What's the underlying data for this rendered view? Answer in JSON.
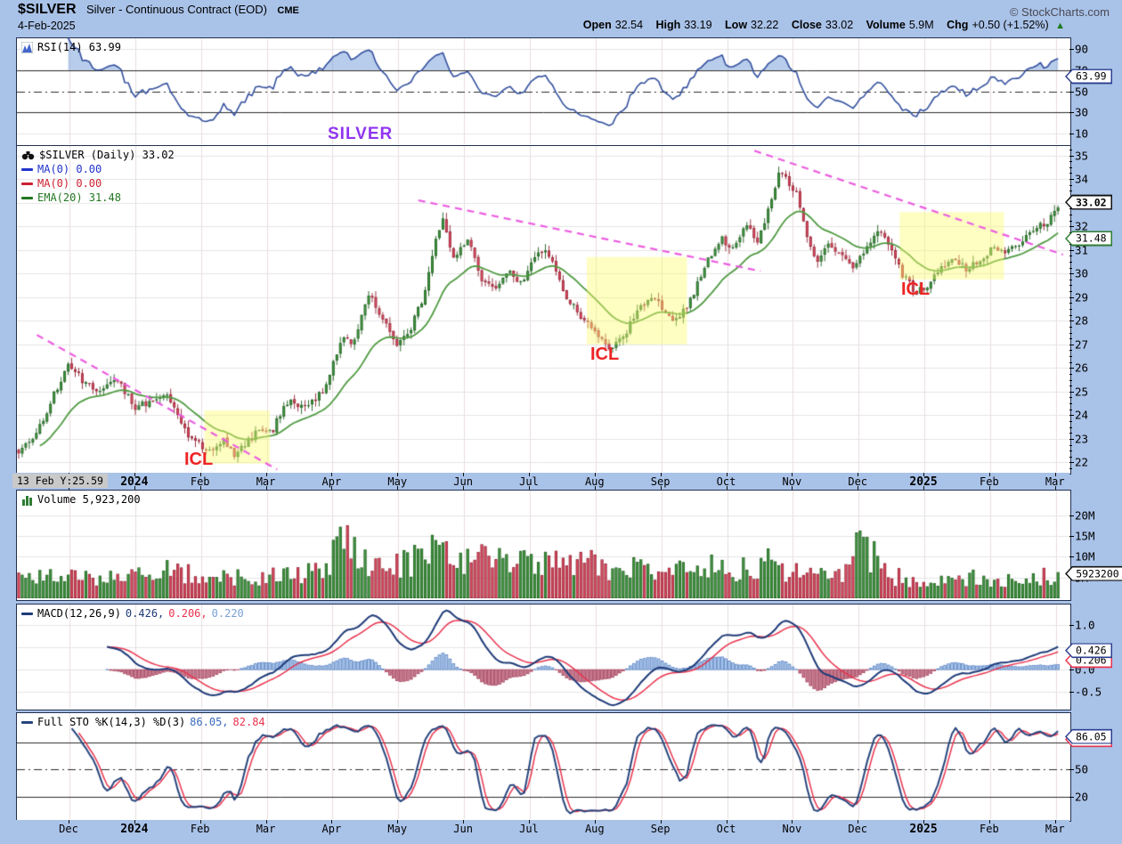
{
  "header": {
    "symbol": "$SILVER",
    "name": "Silver - Continuous Contract (EOD)",
    "exchange": "CME",
    "date": "4-Feb-2025",
    "credit": "© StockCharts.com",
    "quote": {
      "open_label": "Open",
      "open": "32.54",
      "high_label": "High",
      "high": "33.19",
      "low_label": "Low",
      "low": "32.22",
      "close_label": "Close",
      "close": "33.02",
      "volume_label": "Volume",
      "volume": "5.9M",
      "chg_label": "Chg",
      "chg": "+0.50 (+1.52%)",
      "arrow_up": "▲"
    }
  },
  "colors": {
    "page_bg": "#a9c2e8",
    "panel_border": "#22304f",
    "grid_h": "#e4e4e4",
    "grid_v": "#e8dcdc",
    "black_line": "#2a2a2a",
    "candle_up_fill": "#3f8f3f",
    "candle_up_stroke": "#1d5c1d",
    "candle_dn_fill": "#d0475c",
    "candle_dn_stroke": "#8e1f30",
    "ema_line": "#4f9a41",
    "rsi_line": "#33509e",
    "rsi_fill": "rgba(125,162,218,0.55)",
    "trendline": "#ec5ce0",
    "highlight_box": "rgba(252,252,110,0.42)",
    "icl_text": "#ee2424",
    "silver_text": "#8f35f0",
    "macd_line": "#1e3a78",
    "signal_line": "#e8334e",
    "hist_up_fill": "#a9c6ea",
    "hist_up_stroke": "#5b84c4",
    "hist_dn_fill": "#c77c90",
    "hist_dn_stroke": "#a4405c",
    "sto_k": "#27447c",
    "sto_d": "#e8334e",
    "badge_navy": "#2b3f8f",
    "badge_black": "#111111",
    "badge_green": "#2e7d32",
    "badge_red": "#e8334e"
  },
  "chart_data": {
    "type": "multi-panel-financial",
    "symbol": "$SILVER",
    "timeframe": "Daily",
    "x_axis": {
      "months": [
        "Dec",
        "2024",
        "Feb",
        "Mar",
        "Apr",
        "May",
        "Jun",
        "Jul",
        "Aug",
        "Sep",
        "Oct",
        "Nov",
        "Dec",
        "2025",
        "Feb",
        "Mar"
      ],
      "bold_indices": [
        1,
        13
      ],
      "tooltip": "13 Feb Y:25.59"
    },
    "rsi": {
      "legend": "RSI(14) 63.99",
      "period": 14,
      "last": 63.99,
      "ylim": [
        0,
        100
      ],
      "yticks": [
        90,
        70,
        50,
        30,
        10
      ],
      "overbought": 70,
      "oversold": 30,
      "midline": 50
    },
    "price": {
      "chart_type": "candlestick",
      "legend_title": "$SILVER (Daily) 33.02",
      "ma1_label": "MA(0) 0.00",
      "ma2_label": "MA(0) 0.00",
      "ema_label": "EMA(20) 31.48",
      "last_close": 33.02,
      "ema20_last": 31.48,
      "ylim": [
        21.6,
        35.4
      ],
      "yticks": [
        35,
        34,
        33,
        32,
        31,
        30,
        29,
        28,
        27,
        26,
        25,
        24,
        23,
        22
      ],
      "close_waypoints": [
        [
          0.0,
          22.4
        ],
        [
          0.019,
          23.3
        ],
        [
          0.048,
          26.1
        ],
        [
          0.074,
          25.0
        ],
        [
          0.095,
          25.6
        ],
        [
          0.112,
          24.3
        ],
        [
          0.141,
          24.9
        ],
        [
          0.162,
          23.2
        ],
        [
          0.184,
          22.4
        ],
        [
          0.196,
          23.0
        ],
        [
          0.206,
          22.3
        ],
        [
          0.226,
          23.2
        ],
        [
          0.243,
          23.4
        ],
        [
          0.256,
          24.6
        ],
        [
          0.272,
          24.3
        ],
        [
          0.29,
          25.0
        ],
        [
          0.308,
          27.2
        ],
        [
          0.32,
          27.0
        ],
        [
          0.334,
          29.2
        ],
        [
          0.345,
          28.3
        ],
        [
          0.36,
          27.0
        ],
        [
          0.373,
          27.6
        ],
        [
          0.386,
          29.0
        ],
        [
          0.398,
          31.6
        ],
        [
          0.404,
          32.3
        ],
        [
          0.414,
          30.6
        ],
        [
          0.428,
          31.5
        ],
        [
          0.441,
          29.6
        ],
        [
          0.455,
          29.3
        ],
        [
          0.466,
          30.2
        ],
        [
          0.479,
          29.6
        ],
        [
          0.494,
          30.9
        ],
        [
          0.506,
          30.8
        ],
        [
          0.518,
          29.3
        ],
        [
          0.531,
          28.4
        ],
        [
          0.543,
          27.9
        ],
        [
          0.56,
          26.8
        ],
        [
          0.577,
          27.4
        ],
        [
          0.591,
          28.6
        ],
        [
          0.604,
          29.1
        ],
        [
          0.616,
          28.2
        ],
        [
          0.627,
          28.0
        ],
        [
          0.639,
          28.8
        ],
        [
          0.653,
          30.4
        ],
        [
          0.669,
          31.5
        ],
        [
          0.68,
          31.0
        ],
        [
          0.691,
          32.1
        ],
        [
          0.703,
          31.4
        ],
        [
          0.714,
          32.7
        ],
        [
          0.724,
          34.5
        ],
        [
          0.731,
          34.0
        ],
        [
          0.742,
          33.2
        ],
        [
          0.751,
          31.3
        ],
        [
          0.76,
          30.5
        ],
        [
          0.771,
          31.2
        ],
        [
          0.783,
          30.9
        ],
        [
          0.794,
          30.3
        ],
        [
          0.805,
          30.8
        ],
        [
          0.816,
          31.9
        ],
        [
          0.827,
          31.4
        ],
        [
          0.84,
          30.0
        ],
        [
          0.853,
          29.2
        ],
        [
          0.866,
          29.6
        ],
        [
          0.878,
          30.3
        ],
        [
          0.89,
          30.5
        ],
        [
          0.903,
          30.2
        ],
        [
          0.916,
          30.7
        ],
        [
          0.928,
          31.1
        ],
        [
          0.941,
          30.9
        ],
        [
          0.954,
          31.4
        ],
        [
          0.966,
          32.0
        ],
        [
          0.979,
          32.2
        ],
        [
          0.99,
          33.0
        ]
      ],
      "trendlines": [
        {
          "from": [
            0.019,
            27.4
          ],
          "to": [
            0.247,
            21.7
          ]
        },
        {
          "from": [
            0.381,
            33.1
          ],
          "to": [
            0.706,
            30.1
          ]
        },
        {
          "from": [
            0.7,
            35.2
          ],
          "to": [
            0.993,
            30.8
          ]
        }
      ],
      "highlight_boxes": [
        {
          "t": [
            0.178,
            0.24
          ],
          "price": [
            21.95,
            24.2
          ]
        },
        {
          "t": [
            0.541,
            0.636
          ],
          "price": [
            27.0,
            30.7
          ]
        },
        {
          "t": [
            0.838,
            0.937
          ],
          "price": [
            29.75,
            32.6
          ]
        }
      ]
    },
    "volume": {
      "legend": "Volume 5,923,200",
      "last": 5923200,
      "badge_text": "5923200",
      "ylim_millions": [
        0,
        26
      ],
      "yticks_millions": [
        20,
        15,
        10,
        5
      ],
      "waypoints_millions": [
        [
          0.0,
          5.5
        ],
        [
          0.05,
          5.2
        ],
        [
          0.1,
          5.0
        ],
        [
          0.14,
          6.5
        ],
        [
          0.18,
          5.5
        ],
        [
          0.22,
          5.0
        ],
        [
          0.26,
          5.5
        ],
        [
          0.295,
          6.5
        ],
        [
          0.307,
          20.5
        ],
        [
          0.315,
          14.0
        ],
        [
          0.33,
          8.5
        ],
        [
          0.36,
          7.5
        ],
        [
          0.393,
          11.5
        ],
        [
          0.405,
          13.5
        ],
        [
          0.42,
          9.5
        ],
        [
          0.445,
          10.5
        ],
        [
          0.47,
          8.0
        ],
        [
          0.5,
          8.5
        ],
        [
          0.52,
          7.5
        ],
        [
          0.545,
          8.5
        ],
        [
          0.57,
          6.5
        ],
        [
          0.6,
          7.5
        ],
        [
          0.625,
          7.0
        ],
        [
          0.655,
          7.5
        ],
        [
          0.68,
          6.5
        ],
        [
          0.71,
          9.0
        ],
        [
          0.73,
          7.0
        ],
        [
          0.76,
          6.5
        ],
        [
          0.785,
          6.0
        ],
        [
          0.8,
          14.0
        ],
        [
          0.81,
          11.0
        ],
        [
          0.825,
          6.0
        ],
        [
          0.845,
          4.5
        ],
        [
          0.865,
          3.6
        ],
        [
          0.885,
          4.2
        ],
        [
          0.905,
          4.8
        ],
        [
          0.925,
          5.0
        ],
        [
          0.945,
          4.2
        ],
        [
          0.965,
          5.5
        ],
        [
          0.99,
          5.9
        ]
      ]
    },
    "macd": {
      "legend_name": "MACD(12,26,9)",
      "params": [
        12,
        26,
        9
      ],
      "values": [
        "0.426,",
        "0.206,",
        "0.220"
      ],
      "last": {
        "macd": 0.426,
        "signal": 0.206,
        "hist": 0.22
      },
      "ylim": [
        -0.85,
        1.45
      ],
      "yticks": [
        1.0,
        0.5,
        0.0,
        -0.5
      ]
    },
    "sto": {
      "legend_name": "Full STO %K(14,3) %D(3)",
      "values": [
        "86.05,",
        "82.84"
      ],
      "last": {
        "k": 86.05,
        "d": 82.84
      },
      "ylim": [
        -5,
        112
      ],
      "yticks": [
        80,
        50,
        20
      ],
      "overbought": 80,
      "oversold": 20,
      "midline": 50
    },
    "badges": [
      {
        "panel": "rsi",
        "value": 63.99,
        "text": "63.99",
        "border": "badge_navy",
        "bold": false
      },
      {
        "panel": "price",
        "value": 33.02,
        "text": "33.02",
        "border": "badge_black",
        "bold": true
      },
      {
        "panel": "price",
        "value": 31.48,
        "text": "31.48",
        "border": "badge_green",
        "bold": false
      },
      {
        "panel": "volume",
        "value": 5.9232,
        "text": "5923200",
        "border": "badge_black",
        "bold": false
      },
      {
        "panel": "macd",
        "value": 0.206,
        "text": "0.206",
        "border": "badge_red",
        "bold": false
      },
      {
        "panel": "macd",
        "value": 0.426,
        "text": "0.426",
        "border": "badge_navy",
        "bold": false
      },
      {
        "panel": "sto",
        "value": 82.84,
        "text": "82.84",
        "border": "badge_red",
        "bold": false
      },
      {
        "panel": "sto",
        "value": 86.05,
        "text": "86.05",
        "border": "badge_navy",
        "bold": false
      }
    ],
    "annotations": {
      "silver_label": {
        "text": "SILVER",
        "x": 368,
        "y": 140,
        "size": 19
      },
      "icl_labels": [
        {
          "text": "ICL",
          "x": 207,
          "y": 505
        },
        {
          "text": "ICL",
          "x": 663,
          "y": 387
        },
        {
          "text": "ICL",
          "x": 1012,
          "y": 314
        }
      ]
    }
  }
}
